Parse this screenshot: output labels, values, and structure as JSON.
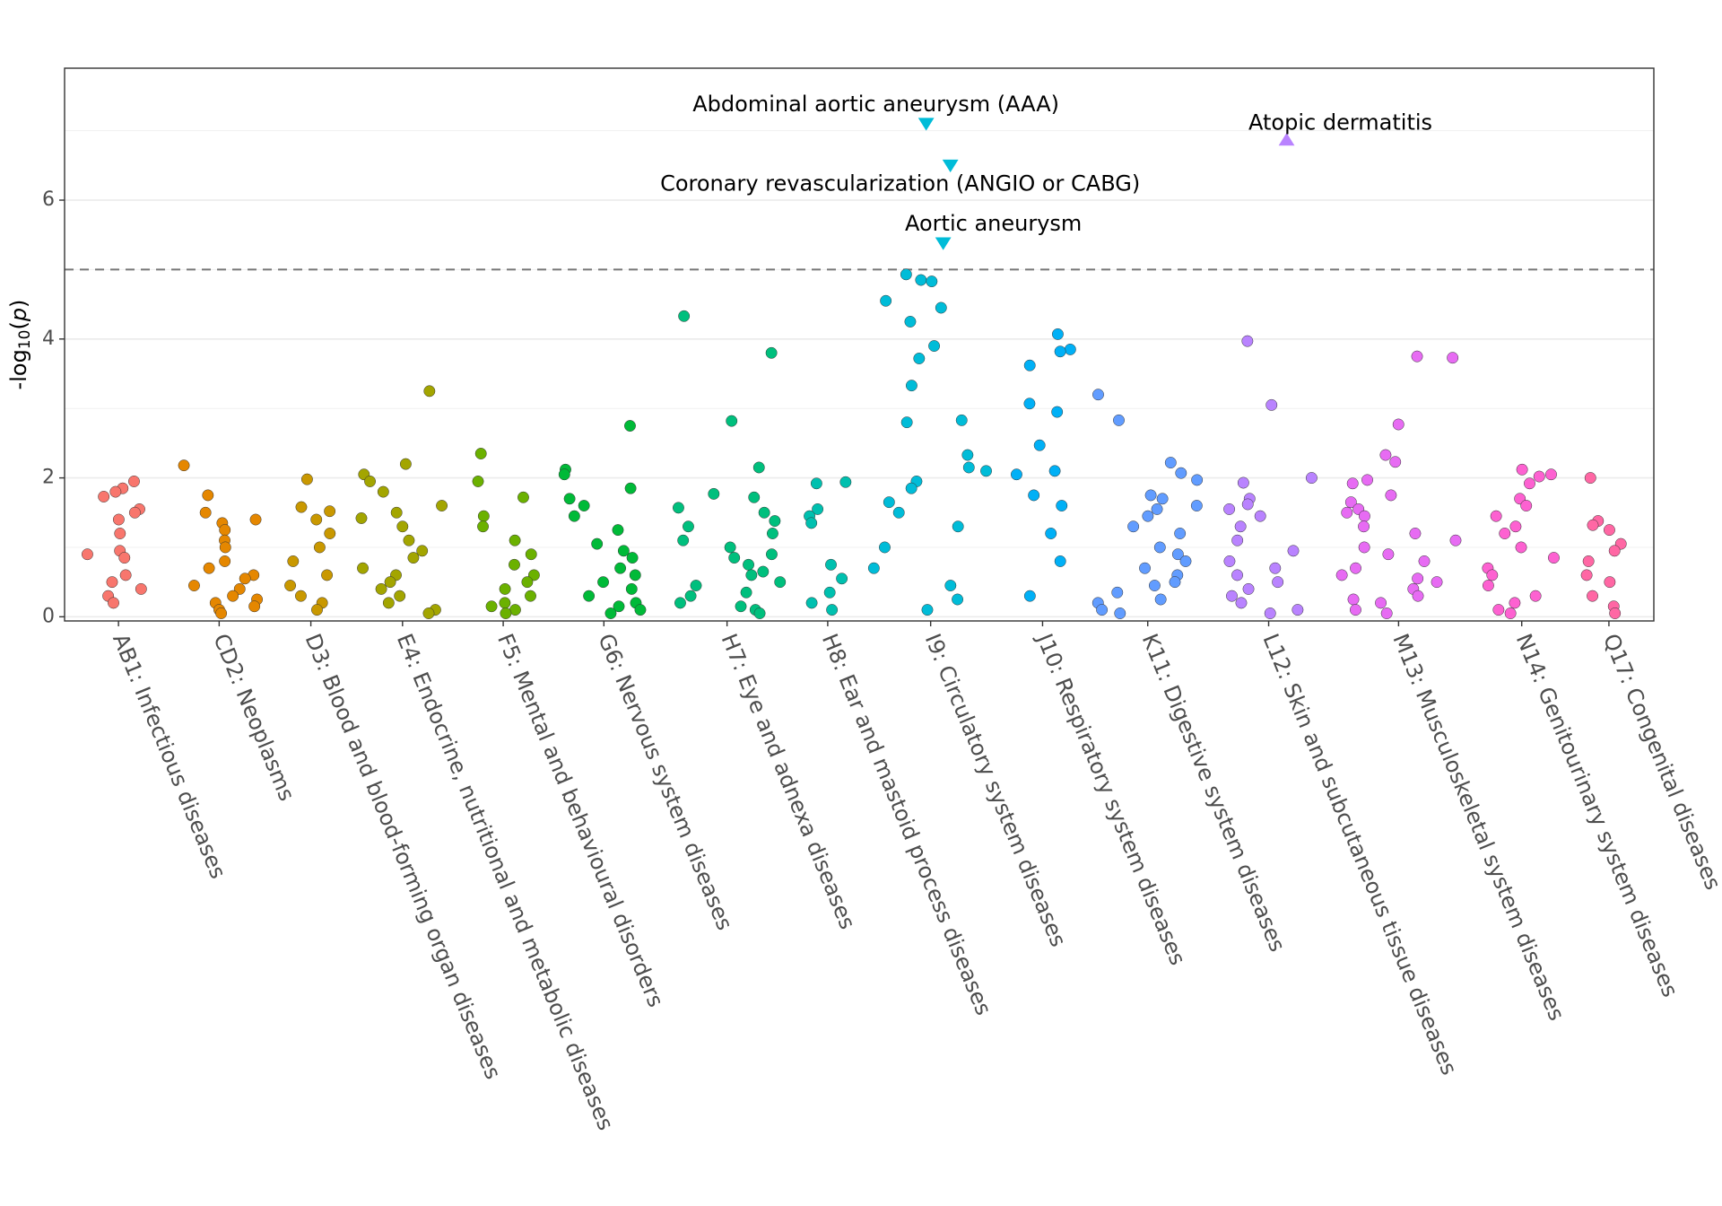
{
  "chart_data": {
    "type": "strip",
    "y_label": [
      "-log",
      "10",
      "(",
      "p",
      ")"
    ],
    "ylim": [
      -0.06,
      7.9
    ],
    "yticks": [
      0,
      2,
      4,
      6
    ],
    "grid": true,
    "minor_grid": [
      1,
      3,
      5,
      7
    ],
    "hline": 5,
    "series": [
      {
        "name": "AB1: Infectious diseases",
        "color": "#F8766D",
        "values": [
          1.95,
          1.85,
          1.8,
          1.73,
          1.55,
          1.5,
          1.4,
          1.2,
          0.95,
          0.9,
          0.85,
          0.6,
          0.5,
          0.4,
          0.3,
          0.2
        ]
      },
      {
        "name": "CD2: Neoplasms",
        "color": "#E58700",
        "values": [
          2.18,
          1.75,
          1.5,
          1.4,
          1.35,
          1.25,
          1.1,
          1.0,
          0.8,
          0.7,
          0.6,
          0.55,
          0.45,
          0.4,
          0.3,
          0.25,
          0.2,
          0.15,
          0.1,
          0.05
        ]
      },
      {
        "name": "D3: Blood and blood-forming organ diseases",
        "color": "#C99800",
        "values": [
          1.98,
          1.58,
          1.52,
          1.4,
          1.2,
          1.0,
          0.8,
          0.6,
          0.45,
          0.3,
          0.2,
          0.1
        ]
      },
      {
        "name": "E4: Endocrine, nutritional and metabolic diseases",
        "color": "#A3A500",
        "values": [
          3.25,
          2.2,
          2.05,
          1.95,
          1.8,
          1.6,
          1.5,
          1.42,
          1.3,
          1.1,
          0.95,
          0.85,
          0.7,
          0.6,
          0.5,
          0.4,
          0.3,
          0.2,
          0.1,
          0.05
        ]
      },
      {
        "name": "F5: Mental and behavioural disorders",
        "color": "#6BB100",
        "values": [
          2.35,
          1.95,
          1.72,
          1.45,
          1.3,
          1.1,
          0.9,
          0.75,
          0.6,
          0.5,
          0.4,
          0.3,
          0.2,
          0.15,
          0.1,
          0.05
        ]
      },
      {
        "name": "G6: Nervous system diseases",
        "color": "#00BA38",
        "values": [
          2.75,
          2.12,
          2.05,
          1.85,
          1.7,
          1.6,
          1.45,
          1.25,
          1.05,
          0.95,
          0.85,
          0.7,
          0.6,
          0.5,
          0.4,
          0.3,
          0.2,
          0.15,
          0.1,
          0.05
        ]
      },
      {
        "name": "H7: Eye and adnexa diseases",
        "color": "#00BF7D",
        "values": [
          4.33,
          3.8,
          2.82,
          2.15,
          1.77,
          1.72,
          1.57,
          1.5,
          1.38,
          1.3,
          1.2,
          1.1,
          1.0,
          0.9,
          0.85,
          0.75,
          0.65,
          0.6,
          0.5,
          0.45,
          0.35,
          0.3,
          0.2,
          0.15,
          0.1,
          0.05
        ]
      },
      {
        "name": "H8: Ear and mastoid process diseases",
        "color": "#00C0AF",
        "values": [
          1.94,
          1.92,
          1.55,
          1.45,
          1.35,
          0.75,
          0.55,
          0.35,
          0.2,
          0.1
        ]
      },
      {
        "name": "I9: Circulatory system diseases",
        "color": "#00BCD8",
        "values": [
          4.93,
          4.85,
          4.83,
          4.55,
          4.45,
          4.25,
          3.9,
          3.72,
          3.33,
          2.83,
          2.8,
          2.33,
          2.15,
          2.1,
          1.95,
          1.85,
          1.65,
          1.5,
          1.3,
          1.0,
          0.7,
          0.45,
          0.25,
          0.1
        ],
        "highlights": [
          {
            "label": "Abdominal aortic aneurysm (AAA)",
            "value": 7.1,
            "direction": "down"
          },
          {
            "label": "Coronary revascularization (ANGIO or CABG)",
            "value": 6.5,
            "direction": "down"
          },
          {
            "label": "Aortic aneurysm",
            "value": 5.38,
            "direction": "down"
          }
        ]
      },
      {
        "name": "J10: Respiratory system diseases",
        "color": "#00B0F6",
        "values": [
          4.07,
          3.85,
          3.82,
          3.62,
          3.07,
          2.95,
          2.47,
          2.1,
          2.05,
          1.75,
          1.6,
          1.2,
          0.8,
          0.3
        ]
      },
      {
        "name": "K11: Digestive system diseases",
        "color": "#619CFF",
        "values": [
          3.2,
          2.83,
          2.22,
          2.07,
          1.97,
          1.75,
          1.7,
          1.6,
          1.55,
          1.45,
          1.3,
          1.2,
          1.0,
          0.9,
          0.8,
          0.7,
          0.6,
          0.5,
          0.45,
          0.35,
          0.25,
          0.2,
          0.1,
          0.05
        ]
      },
      {
        "name": "L12: Skin and subcutaneous tissue diseases",
        "color": "#B983FF",
        "values": [
          3.97,
          3.05,
          2.0,
          1.93,
          1.7,
          1.62,
          1.55,
          1.45,
          1.3,
          1.1,
          0.95,
          0.8,
          0.7,
          0.6,
          0.5,
          0.4,
          0.3,
          0.2,
          0.1,
          0.05
        ],
        "highlights": [
          {
            "label": "Atopic dermatitis",
            "value": 6.87,
            "direction": "up"
          }
        ]
      },
      {
        "name": "M13: Musculoskeletal system diseases",
        "color": "#E76BF3",
        "values": [
          3.75,
          3.73,
          2.77,
          2.33,
          2.23,
          1.97,
          1.92,
          1.75,
          1.65,
          1.55,
          1.5,
          1.45,
          1.3,
          1.2,
          1.1,
          1.0,
          0.9,
          0.8,
          0.7,
          0.6,
          0.55,
          0.5,
          0.4,
          0.3,
          0.25,
          0.2,
          0.1,
          0.05
        ]
      },
      {
        "name": "N14: Genitourinary system diseases",
        "color": "#FD61D1",
        "values": [
          2.12,
          2.05,
          2.02,
          1.92,
          1.7,
          1.6,
          1.45,
          1.3,
          1.2,
          1.0,
          0.85,
          0.7,
          0.6,
          0.45,
          0.3,
          0.2,
          0.1,
          0.05
        ]
      },
      {
        "name": "Q17: Congenital diseases",
        "color": "#FF67A4",
        "values": [
          2.0,
          1.38,
          1.32,
          1.25,
          1.05,
          0.95,
          0.8,
          0.6,
          0.5,
          0.3,
          0.15,
          0.05
        ]
      }
    ]
  }
}
